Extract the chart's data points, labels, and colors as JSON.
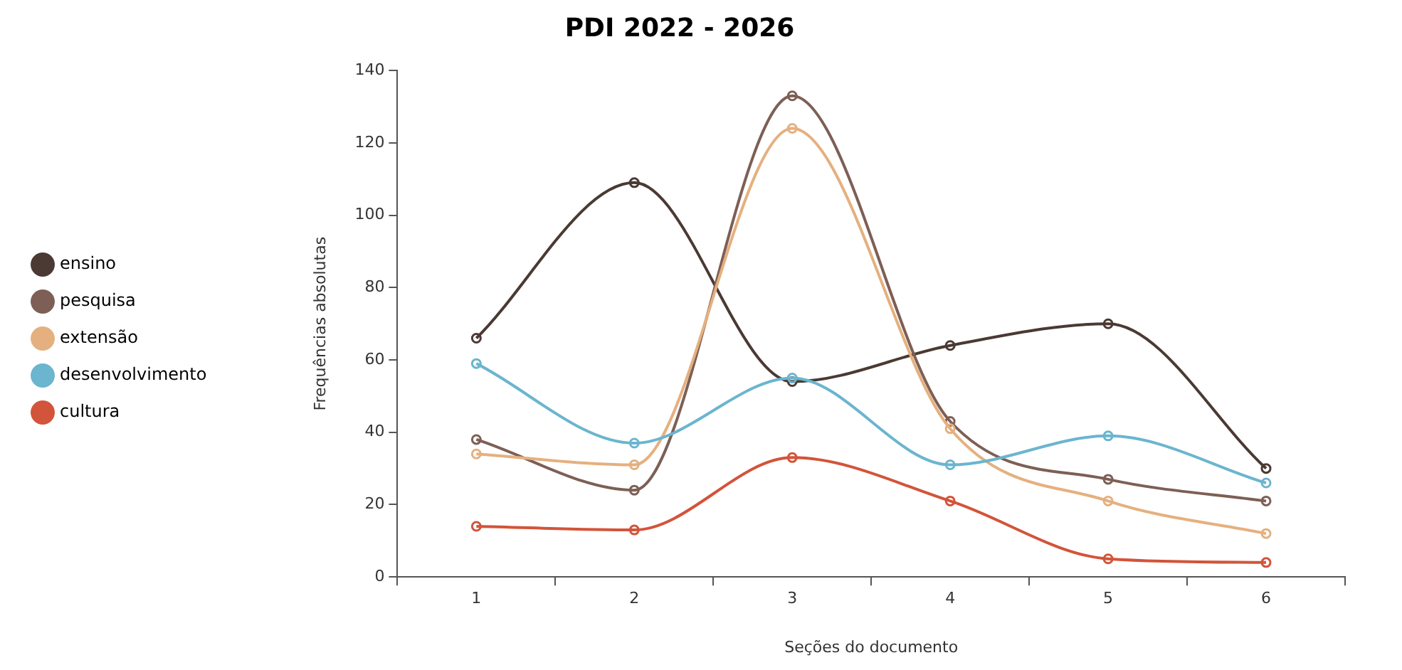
{
  "chart_data": {
    "type": "line",
    "title": "PDI 2022 - 2026",
    "xlabel": "Seções do documento",
    "ylabel": "Frequências absolutas",
    "categories": [
      "1",
      "2",
      "3",
      "4",
      "5",
      "6"
    ],
    "series": [
      {
        "name": "ensino",
        "color": "#4a3a33",
        "values": [
          66,
          109,
          54,
          64,
          70,
          30
        ]
      },
      {
        "name": "pesquisa",
        "color": "#7d5f55",
        "values": [
          38,
          24,
          133,
          43,
          27,
          21
        ]
      },
      {
        "name": "extensão",
        "color": "#e5b07f",
        "values": [
          34,
          31,
          124,
          41,
          21,
          12
        ]
      },
      {
        "name": "desenvolvimento",
        "color": "#6bb5cf",
        "values": [
          59,
          37,
          55,
          31,
          39,
          26
        ]
      },
      {
        "name": "cultura",
        "color": "#d2543a",
        "values": [
          14,
          13,
          33,
          21,
          5,
          4
        ]
      }
    ],
    "ylim": [
      0,
      140
    ],
    "yticks": [
      0,
      20,
      40,
      60,
      80,
      100,
      120,
      140
    ],
    "grid": false,
    "legend": "left",
    "marker": "circle",
    "line_style": "solid"
  }
}
